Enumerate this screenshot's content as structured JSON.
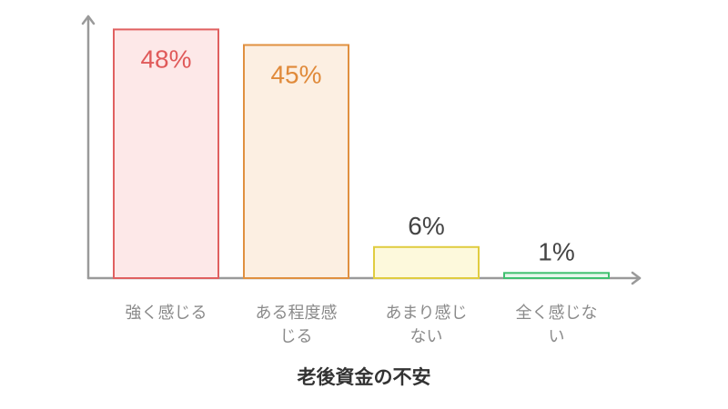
{
  "chart_data": {
    "type": "bar",
    "title": "老後資金の不安",
    "xlabel": "",
    "ylabel": "",
    "ylim": [
      0,
      50
    ],
    "grid": false,
    "categories": [
      [
        "強く感じる"
      ],
      [
        "ある程度感",
        "じる"
      ],
      [
        "あまり感じ",
        "ない"
      ],
      [
        "全く感じな",
        "い"
      ]
    ],
    "values": [
      48,
      45,
      6,
      1
    ],
    "value_labels": [
      "48%",
      "45%",
      "6%",
      "1%"
    ],
    "bar_styles": [
      {
        "fill": "#fde8e8",
        "stroke": "#e06060",
        "label_color": "#e05a5a"
      },
      {
        "fill": "#fcefe2",
        "stroke": "#e09040",
        "label_color": "#e08a3a"
      },
      {
        "fill": "#fdf9dc",
        "stroke": "#e0cc40",
        "label_color": "#444444"
      },
      {
        "fill": "#e6f7ec",
        "stroke": "#40c070",
        "label_color": "#444444"
      }
    ],
    "axis_color": "#9a9a9a"
  }
}
